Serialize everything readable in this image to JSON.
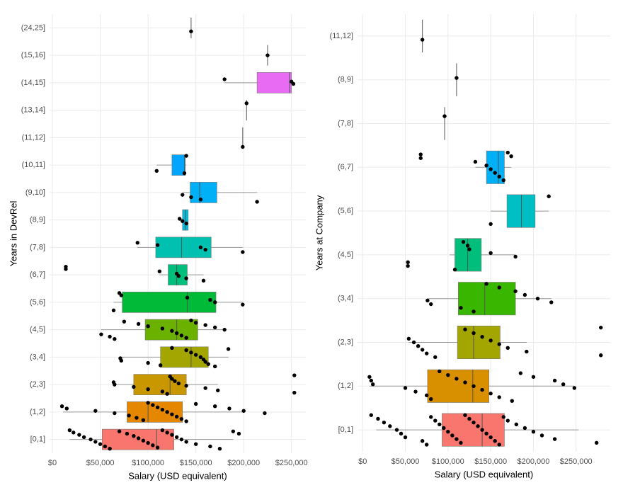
{
  "chart_data": [
    {
      "type": "box",
      "orientation": "horizontal",
      "x_label": "Salary (USD equivalent)",
      "y_label": "Years in DevRel",
      "categories": [
        "[0,1]",
        "(1,2]",
        "(2,3]",
        "(3,4]",
        "(4,5]",
        "(5,6]",
        "(6,7]",
        "(7,8]",
        "(8,9]",
        "(9,10]",
        "(10,11]",
        "(11,12]",
        "(13,14]",
        "(14,15]",
        "(15,16]",
        "(24,25]"
      ],
      "colors": [
        "#f8766d",
        "#e58700",
        "#c99800",
        "#a3a500",
        "#6bb100",
        "#00ba38",
        "#00bf7d",
        "#00c0af",
        "#00bcd8",
        "#00b0f6",
        "#00a5ff",
        "#619cff",
        "#b983ff",
        "#e76bf3",
        "#fd61d1",
        "#ff67a4"
      ],
      "boxes": [
        {
          "low": 18000,
          "q1": 52000,
          "median": 109000,
          "q3": 127000,
          "high": 189000
        },
        {
          "low": 11000,
          "q1": 78000,
          "median": 100000,
          "q3": 136000,
          "high": 201000
        },
        {
          "low": 64000,
          "q1": 85000,
          "median": 123000,
          "q3": 140000,
          "high": 173000
        },
        {
          "low": 71000,
          "q1": 113000,
          "median": 145000,
          "q3": 163000,
          "high": 184000
        },
        {
          "low": 51000,
          "q1": 97000,
          "median": 130000,
          "q3": 152000,
          "high": 180000
        },
        {
          "low": 64000,
          "q1": 73000,
          "median": 141000,
          "q3": 171000,
          "high": 199000
        },
        {
          "low": 112000,
          "q1": 121000,
          "median": 130000,
          "q3": 141000,
          "high": 158000
        },
        {
          "low": 89000,
          "q1": 108000,
          "median": 135000,
          "q3": 166000,
          "high": 199000
        },
        {
          "low": 133000,
          "q1": 136000,
          "median": 139000,
          "q3": 142000,
          "high": 142000
        },
        {
          "low": 136000,
          "q1": 144000,
          "median": 154000,
          "q3": 172000,
          "high": 214000
        },
        {
          "low": 109000,
          "q1": 125000,
          "median": 138000,
          "q3": 139000,
          "high": 140000
        },
        {
          "low": 199000,
          "q1": 199000,
          "median": 199000,
          "q3": 199000,
          "high": 199000
        },
        {
          "low": 203000,
          "q1": 203000,
          "median": 203000,
          "q3": 203000,
          "high": 203000
        },
        {
          "low": 180000,
          "q1": 214000,
          "median": 248000,
          "q3": 250000,
          "high": 252000
        },
        {
          "low": 225000,
          "q1": 225000,
          "median": 225000,
          "q3": 225000,
          "high": 225000
        },
        {
          "low": 145000,
          "q1": 145000,
          "median": 145000,
          "q3": 145000,
          "high": 145000
        }
      ],
      "points": [
        [
          18000,
          22000,
          28000,
          33000,
          40000,
          45000,
          50000,
          55000,
          60000,
          70000,
          78000,
          85000,
          90000,
          95000,
          100000,
          105000,
          110000,
          115000,
          120000,
          125000,
          130000,
          135000,
          140000,
          150000,
          165000,
          175000,
          189000,
          195000
        ],
        [
          10000,
          15000,
          45000,
          65000,
          80000,
          88000,
          95000,
          100000,
          105000,
          110000,
          115000,
          120000,
          125000,
          130000,
          135000,
          140000,
          150000,
          170000,
          185000,
          200000,
          222000
        ],
        [
          64000,
          65000,
          85000,
          100000,
          115000,
          120000,
          123000,
          125000,
          128000,
          132000,
          140000,
          160000,
          173000,
          253000,
          253000
        ],
        [
          71000,
          72000,
          100000,
          113000,
          125000,
          140000,
          145000,
          150000,
          155000,
          158000,
          160000,
          163000,
          170000,
          184000
        ],
        [
          51000,
          60000,
          65000,
          75000,
          90000,
          100000,
          115000,
          125000,
          130000,
          135000,
          140000,
          145000,
          150000,
          160000,
          170000,
          180000
        ],
        [
          64000,
          70000,
          72000,
          141000,
          165000,
          170000,
          199000
        ],
        [
          14000,
          14000,
          112000,
          130000,
          132000,
          140000,
          158000
        ],
        [
          89000,
          110000,
          155000,
          160000,
          199000
        ],
        [
          133000,
          136000,
          140000
        ],
        [
          136000,
          145000,
          155000,
          214000
        ],
        [
          109000,
          138000,
          140000
        ],
        [
          199000
        ],
        [
          203000
        ],
        [
          180000,
          250000,
          252000
        ],
        [
          225000
        ],
        [
          145000
        ]
      ],
      "xlim": [
        -3000,
        265000
      ],
      "xticks": [
        {
          "value": 0,
          "label": "$0"
        },
        {
          "value": 50000,
          "label": "$50,000"
        },
        {
          "value": 100000,
          "label": "$100,000"
        },
        {
          "value": 150000,
          "label": "$150,000"
        },
        {
          "value": 200000,
          "label": "$200,000"
        },
        {
          "value": 250000,
          "label": "$250,000"
        }
      ],
      "grid": true
    },
    {
      "type": "box",
      "orientation": "horizontal",
      "x_label": "Salary (USD equivalent)",
      "y_label": "Years at Company",
      "categories": [
        "[0,1]",
        "(1,2]",
        "(2,3]",
        "(3,4]",
        "(4,5]",
        "(5,6]",
        "(6,7]",
        "(7,8]",
        "(8,9]",
        "(11,12]"
      ],
      "colors": [
        "#f8766d",
        "#d89000",
        "#a3a500",
        "#39b600",
        "#00bf7d",
        "#00bfc4",
        "#00b0f6",
        "#9590ff",
        "#e76bf3",
        "#ff62bc"
      ],
      "boxes": [
        {
          "low": 16000,
          "q1": 93000,
          "median": 140000,
          "q3": 166000,
          "high": 253000
        },
        {
          "low": 8000,
          "q1": 76000,
          "median": 129000,
          "q3": 148000,
          "high": 248000
        },
        {
          "low": 54000,
          "q1": 111000,
          "median": 130000,
          "q3": 161000,
          "high": 192000
        },
        {
          "low": 76000,
          "q1": 112000,
          "median": 143000,
          "q3": 179000,
          "high": 221000
        },
        {
          "low": 102000,
          "q1": 108000,
          "median": 123000,
          "q3": 139000,
          "high": 179000
        },
        {
          "low": 150000,
          "q1": 169000,
          "median": 186000,
          "q3": 202000,
          "high": 218000
        },
        {
          "low": 132000,
          "q1": 145000,
          "median": 159000,
          "q3": 166000,
          "high": 174000
        },
        {
          "low": 96000,
          "q1": 96000,
          "median": 96000,
          "q3": 96000,
          "high": 96000
        },
        {
          "low": 110000,
          "q1": 110000,
          "median": 110000,
          "q3": 110000,
          "high": 110000
        },
        {
          "low": 70000,
          "q1": 70000,
          "median": 70000,
          "q3": 70000,
          "high": 70000
        }
      ],
      "points": [
        [
          10000,
          18000,
          25000,
          32000,
          40000,
          45000,
          50000,
          70000,
          75000,
          80000,
          85000,
          90000,
          95000,
          100000,
          105000,
          110000,
          115000,
          120000,
          125000,
          130000,
          135000,
          140000,
          145000,
          150000,
          155000,
          160000,
          165000,
          170000,
          180000,
          190000,
          200000,
          210000,
          225000,
          274000
        ],
        [
          8000,
          10000,
          12000,
          50000,
          62000,
          75000,
          80000,
          90000,
          100000,
          110000,
          120000,
          130000,
          140000,
          150000,
          160000,
          175000,
          185000,
          200000,
          225000,
          235000,
          248000
        ],
        [
          54000,
          60000,
          65000,
          70000,
          75000,
          85000,
          120000,
          130000,
          140000,
          150000,
          160000,
          170000,
          192000,
          279000,
          279000
        ],
        [
          76000,
          80000,
          115000,
          130000,
          145000,
          160000,
          179000,
          190000,
          205000,
          221000
        ],
        [
          53000,
          53000,
          108000,
          118000,
          123000,
          125000,
          150000,
          179000
        ],
        [
          150000,
          218000
        ],
        [
          68000,
          68000,
          132000,
          145000,
          150000,
          155000,
          160000,
          165000,
          170000,
          174000
        ],
        [
          96000
        ],
        [
          110000
        ],
        [
          70000
        ]
      ],
      "xlim": [
        -6000,
        290000
      ],
      "xticks": [
        {
          "value": 0,
          "label": "$0"
        },
        {
          "value": 50000,
          "label": "$50,000"
        },
        {
          "value": 100000,
          "label": "$100,000"
        },
        {
          "value": 150000,
          "label": "$150,000"
        },
        {
          "value": 200000,
          "label": "$200,000"
        },
        {
          "value": 250000,
          "label": "$250,000"
        }
      ],
      "grid": true
    }
  ]
}
